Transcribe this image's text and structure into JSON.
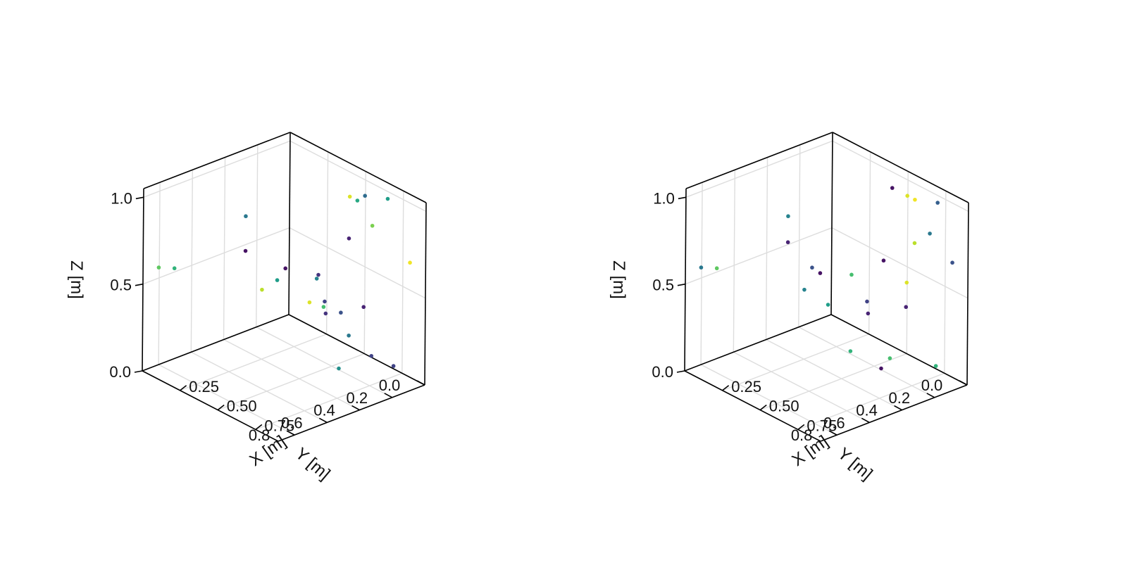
{
  "chart_data": [
    {
      "type": "scatter3d",
      "xlabel": "X [m]",
      "ylabel": "Y [m]",
      "zlabel": "Z [m]",
      "xlim": [
        0,
        0.9
      ],
      "ylim": [
        0,
        0.9
      ],
      "zlim": [
        0,
        1.05
      ],
      "xticks": [
        "0.25",
        "0.50",
        "0.75"
      ],
      "yticks": [
        "0.0",
        "0.2",
        "0.4",
        "0.6",
        "0.8"
      ],
      "zticks": [
        "0.0",
        "0.5",
        "1.0"
      ],
      "grid": true,
      "colormap": "viridis",
      "points": [
        {
          "x": 0.05,
          "y": 0.85,
          "z": 0.6,
          "c": 0.75
        },
        {
          "x": 0.1,
          "y": 0.8,
          "z": 0.6,
          "c": 0.65
        },
        {
          "x": 0.3,
          "y": 0.55,
          "z": 0.9,
          "c": 0.4
        },
        {
          "x": 0.3,
          "y": 0.55,
          "z": 0.7,
          "c": 0.05
        },
        {
          "x": 0.35,
          "y": 0.35,
          "z": 0.55,
          "c": 0.05
        },
        {
          "x": 0.35,
          "y": 0.4,
          "z": 0.5,
          "c": 0.55
        },
        {
          "x": 0.25,
          "y": 0.4,
          "z": 0.4,
          "c": 0.9
        },
        {
          "x": 0.35,
          "y": 0.2,
          "z": 0.3,
          "c": 0.95
        },
        {
          "x": 0.45,
          "y": 0.25,
          "z": 0.5,
          "c": 0.45
        },
        {
          "x": 0.45,
          "y": 0.2,
          "z": 0.35,
          "c": 0.2
        },
        {
          "x": 0.35,
          "y": 0.1,
          "z": 0.2,
          "c": 0.15
        },
        {
          "x": 0.45,
          "y": 0.1,
          "z": 0.25,
          "c": 0.25
        },
        {
          "x": 0.3,
          "y": 0.1,
          "z": 0.4,
          "c": 0.15
        },
        {
          "x": 0.45,
          "y": 0.05,
          "z": 0.1,
          "c": 0.4
        },
        {
          "x": 0.45,
          "y": 0.05,
          "z": 0.9,
          "c": 0.95
        },
        {
          "x": 0.5,
          "y": 0.05,
          "z": 0.9,
          "c": 0.6
        },
        {
          "x": 0.55,
          "y": 0.05,
          "z": 0.95,
          "c": 0.35
        },
        {
          "x": 0.5,
          "y": 0.1,
          "z": 0.7,
          "c": 0.1
        },
        {
          "x": 0.6,
          "y": 0.05,
          "z": 0.8,
          "c": 0.8
        },
        {
          "x": 0.7,
          "y": 0.05,
          "z": 1.0,
          "c": 0.55
        },
        {
          "x": 0.85,
          "y": 0.05,
          "z": 0.7,
          "c": 0.98
        },
        {
          "x": 0.55,
          "y": 0.3,
          "z": 0.4,
          "c": 0.7
        },
        {
          "x": 0.6,
          "y": 0.1,
          "z": 0.35,
          "c": 0.1
        },
        {
          "x": 0.6,
          "y": 0.05,
          "z": 0.05,
          "c": 0.2
        },
        {
          "x": 0.8,
          "y": 0.1,
          "z": 0.1,
          "c": 0.2
        },
        {
          "x": 0.6,
          "y": 0.25,
          "z": 0.05,
          "c": 0.5
        }
      ]
    },
    {
      "type": "scatter3d",
      "xlabel": "X [m]",
      "ylabel": "Y [m]",
      "zlabel": "Z [m]",
      "xlim": [
        0,
        0.9
      ],
      "ylim": [
        0,
        0.9
      ],
      "zlim": [
        0,
        1.05
      ],
      "xticks": [
        "0.25",
        "0.50",
        "0.75"
      ],
      "yticks": [
        "0.0",
        "0.2",
        "0.4",
        "0.6",
        "0.8"
      ],
      "zticks": [
        "0.0",
        "0.5",
        "1.0"
      ],
      "grid": true,
      "colormap": "viridis",
      "points": [
        {
          "x": 0.05,
          "y": 0.85,
          "z": 0.6,
          "c": 0.4
        },
        {
          "x": 0.1,
          "y": 0.8,
          "z": 0.6,
          "c": 0.75
        },
        {
          "x": 0.3,
          "y": 0.55,
          "z": 0.9,
          "c": 0.45
        },
        {
          "x": 0.3,
          "y": 0.55,
          "z": 0.75,
          "c": 0.1
        },
        {
          "x": 0.3,
          "y": 0.4,
          "z": 0.55,
          "c": 0.25
        },
        {
          "x": 0.3,
          "y": 0.35,
          "z": 0.5,
          "c": 0.05
        },
        {
          "x": 0.25,
          "y": 0.4,
          "z": 0.4,
          "c": 0.45
        },
        {
          "x": 0.3,
          "y": 0.3,
          "z": 0.3,
          "c": 0.55
        },
        {
          "x": 0.4,
          "y": 0.25,
          "z": 0.5,
          "c": 0.7
        },
        {
          "x": 0.45,
          "y": 0.2,
          "z": 0.35,
          "c": 0.2
        },
        {
          "x": 0.35,
          "y": 0.1,
          "z": 0.2,
          "c": 0.1
        },
        {
          "x": 0.45,
          "y": 0.1,
          "z": 0.55,
          "c": 0.05
        },
        {
          "x": 0.45,
          "y": 0.05,
          "z": 0.95,
          "c": 0.05
        },
        {
          "x": 0.55,
          "y": 0.05,
          "z": 0.95,
          "c": 0.95
        },
        {
          "x": 0.55,
          "y": 0.05,
          "z": 0.45,
          "c": 0.95
        },
        {
          "x": 0.6,
          "y": 0.05,
          "z": 0.95,
          "c": 0.98
        },
        {
          "x": 0.6,
          "y": 0.05,
          "z": 0.7,
          "c": 0.9
        },
        {
          "x": 0.7,
          "y": 0.05,
          "z": 0.8,
          "c": 0.4
        },
        {
          "x": 0.75,
          "y": 0.05,
          "z": 1.0,
          "c": 0.3
        },
        {
          "x": 0.85,
          "y": 0.05,
          "z": 0.7,
          "c": 0.25
        },
        {
          "x": 0.6,
          "y": 0.1,
          "z": 0.35,
          "c": 0.1
        },
        {
          "x": 0.45,
          "y": 0.3,
          "z": 0.1,
          "c": 0.65
        },
        {
          "x": 0.55,
          "y": 0.15,
          "z": 0.05,
          "c": 0.7
        },
        {
          "x": 0.8,
          "y": 0.1,
          "z": 0.1,
          "c": 0.65
        },
        {
          "x": 0.6,
          "y": 0.25,
          "z": 0.05,
          "c": 0.05
        }
      ]
    }
  ]
}
